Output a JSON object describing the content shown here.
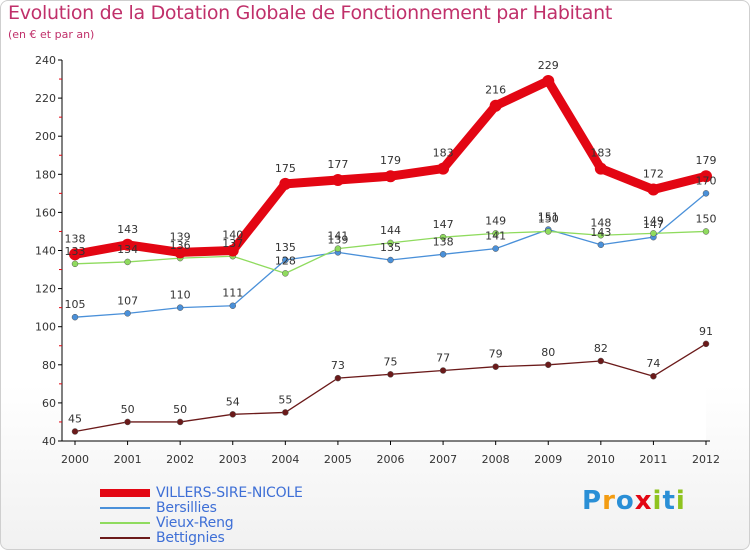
{
  "header": {
    "title": "Evolution de la Dotation Globale de Fonctionnement par Habitant",
    "subtitle": "(en € et par an)"
  },
  "chart_data": {
    "type": "line",
    "title": "Evolution de la Dotation Globale de Fonctionnement par Habitant",
    "subtitle": "(en € et par an)",
    "xlabel": "",
    "ylabel": "",
    "ylim": [
      40,
      240
    ],
    "yticks": [
      40,
      60,
      80,
      100,
      120,
      140,
      160,
      180,
      200,
      220,
      240
    ],
    "grid": false,
    "legend_position": "bottom-left",
    "x": [
      "2000",
      "2001",
      "2002",
      "2003",
      "2004",
      "2005",
      "2006",
      "2007",
      "2008",
      "2009",
      "2010",
      "2011",
      "2012"
    ],
    "series": [
      {
        "name": "VILLERS-SIRE-NICOLE",
        "color": "#e30613",
        "emphasis": true,
        "values": [
          138,
          143,
          139,
          140,
          175,
          177,
          179,
          183,
          216,
          229,
          183,
          172,
          179
        ],
        "labels": [
          "138",
          "143",
          "139",
          "140",
          "175",
          "177",
          "179",
          "183",
          "216",
          "229",
          "183",
          "172",
          "179"
        ]
      },
      {
        "name": "Bersillies",
        "color": "#4a90d9",
        "emphasis": false,
        "values": [
          105,
          107,
          110,
          111,
          135,
          139,
          135,
          138,
          141,
          151,
          143,
          147,
          170
        ],
        "labels": [
          "105",
          "107",
          "110",
          "111",
          "135",
          "139",
          "135",
          "138",
          "141",
          "151",
          "143",
          "147",
          "170"
        ]
      },
      {
        "name": "Vieux-Reng",
        "color": "#8fdb5e",
        "emphasis": false,
        "values": [
          133,
          134,
          136,
          137,
          128,
          141,
          144,
          147,
          149,
          150,
          148,
          149,
          150
        ],
        "labels": [
          "133",
          "134",
          "136",
          "137",
          "128",
          "141",
          "144",
          "147",
          "149",
          "150",
          "148",
          "149",
          "150"
        ]
      },
      {
        "name": "Bettignies",
        "color": "#6b1a1a",
        "emphasis": false,
        "values": [
          45,
          50,
          50,
          54,
          55,
          73,
          75,
          77,
          79,
          80,
          82,
          74,
          91
        ],
        "labels": [
          "45",
          "50",
          "50",
          "54",
          "55",
          "73",
          "75",
          "77",
          "79",
          "80",
          "82",
          "74",
          "91"
        ]
      }
    ]
  },
  "logo": {
    "letters": [
      "P",
      "r",
      "o",
      "x",
      "i",
      "t",
      "i"
    ],
    "colors": [
      "#2a8fd6",
      "#f39c12",
      "#2a8fd6",
      "#e30613",
      "#8fc31f",
      "#2a8fd6",
      "#8fc31f"
    ]
  }
}
